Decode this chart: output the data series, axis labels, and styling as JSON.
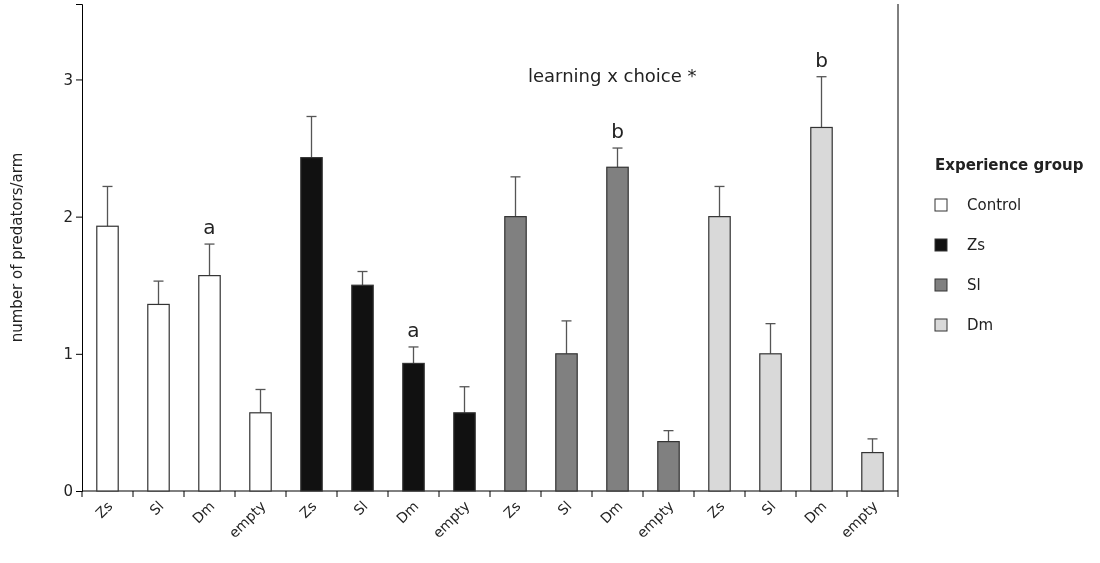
{
  "chart_data": {
    "type": "bar",
    "ylabel": "number of predators/arm",
    "legend_title": "Experience group",
    "legend": "right",
    "annotations": [
      "learning x choice *"
    ],
    "categories": [
      "Zs",
      "Sl",
      "Dm",
      "empty",
      "Zs",
      "Sl",
      "Dm",
      "empty",
      "Zs",
      "Sl",
      "Dm",
      "empty",
      "Zs",
      "Sl",
      "Dm",
      "empty"
    ],
    "ylim": [
      0,
      3.55
    ],
    "yticks": [
      0,
      1,
      2,
      3
    ],
    "grid": false,
    "series": [
      {
        "name": "Control",
        "color": "#ffffff",
        "values": [
          1.93,
          1.36,
          1.57,
          0.57,
          null,
          null,
          null,
          null,
          null,
          null,
          null,
          null,
          null,
          null,
          null,
          null
        ],
        "errors": [
          [
            1.93,
            2.22
          ],
          [
            1.36,
            1.53
          ],
          [
            1.57,
            1.8
          ],
          [
            0.57,
            0.74
          ],
          null,
          null,
          null,
          null,
          null,
          null,
          null,
          null,
          null,
          null,
          null,
          null
        ],
        "value_labels": [
          null,
          null,
          "a",
          null,
          null,
          null,
          null,
          null,
          null,
          null,
          null,
          null,
          null,
          null,
          null,
          null
        ]
      },
      {
        "name": "Zs",
        "color": "#111111",
        "values": [
          null,
          null,
          null,
          null,
          2.43,
          1.5,
          0.93,
          0.57,
          null,
          null,
          null,
          null,
          null,
          null,
          null,
          null
        ],
        "errors": [
          null,
          null,
          null,
          null,
          [
            2.43,
            2.73
          ],
          [
            1.5,
            1.6
          ],
          [
            0.93,
            1.05
          ],
          [
            0.57,
            0.76
          ],
          null,
          null,
          null,
          null,
          null,
          null,
          null,
          null
        ],
        "value_labels": [
          null,
          null,
          null,
          null,
          null,
          null,
          "a",
          null,
          null,
          null,
          null,
          null,
          null,
          null,
          null,
          null
        ]
      },
      {
        "name": "Sl",
        "color": "#808080",
        "values": [
          null,
          null,
          null,
          null,
          null,
          null,
          null,
          null,
          2.0,
          1.0,
          2.36,
          0.36,
          null,
          null,
          null,
          null
        ],
        "errors": [
          null,
          null,
          null,
          null,
          null,
          null,
          null,
          null,
          [
            2.0,
            2.29
          ],
          [
            1.0,
            1.24
          ],
          [
            2.36,
            2.5
          ],
          [
            0.36,
            0.44
          ],
          null,
          null,
          null,
          null
        ],
        "value_labels": [
          null,
          null,
          null,
          null,
          null,
          null,
          null,
          null,
          null,
          null,
          "b",
          null,
          null,
          null,
          null,
          null
        ]
      },
      {
        "name": "Dm",
        "color": "#d9d9d9",
        "values": [
          null,
          null,
          null,
          null,
          null,
          null,
          null,
          null,
          null,
          null,
          null,
          null,
          2.0,
          1.0,
          2.65,
          0.28
        ],
        "errors": [
          null,
          null,
          null,
          null,
          null,
          null,
          null,
          null,
          null,
          null,
          null,
          null,
          [
            2.0,
            2.22
          ],
          [
            1.0,
            1.22
          ],
          [
            2.65,
            3.02
          ],
          [
            0.28,
            0.38
          ]
        ],
        "value_labels": [
          null,
          null,
          null,
          null,
          null,
          null,
          null,
          null,
          null,
          null,
          null,
          null,
          null,
          null,
          "b",
          null
        ]
      }
    ]
  }
}
